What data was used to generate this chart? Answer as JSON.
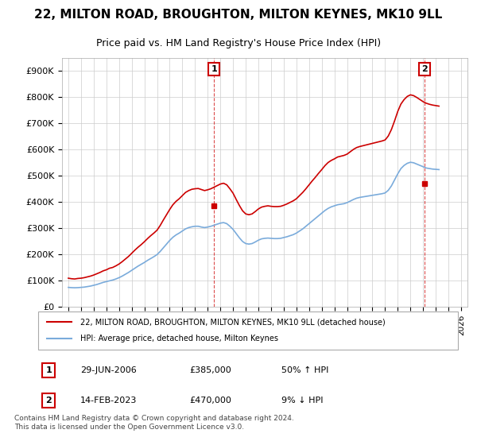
{
  "title": "22, MILTON ROAD, BROUGHTON, MILTON KEYNES, MK10 9LL",
  "subtitle": "Price paid vs. HM Land Registry's House Price Index (HPI)",
  "title_fontsize": 11,
  "subtitle_fontsize": 9,
  "ylabel_ticks": [
    "£0",
    "£100K",
    "£200K",
    "£300K",
    "£400K",
    "£500K",
    "£600K",
    "£700K",
    "£800K",
    "£900K"
  ],
  "ytick_values": [
    0,
    100000,
    200000,
    300000,
    400000,
    500000,
    600000,
    700000,
    800000,
    900000
  ],
  "ylim": [
    0,
    950000
  ],
  "xlim_start": 1994.5,
  "xlim_end": 2026.5,
  "xticks": [
    1995,
    1996,
    1997,
    1998,
    1999,
    2000,
    2001,
    2002,
    2003,
    2004,
    2005,
    2006,
    2007,
    2008,
    2009,
    2010,
    2011,
    2012,
    2013,
    2014,
    2015,
    2016,
    2017,
    2018,
    2019,
    2020,
    2021,
    2022,
    2023,
    2024,
    2025,
    2026
  ],
  "red_color": "#cc0000",
  "blue_color": "#7aabdb",
  "annotation_box_color": "#cc0000",
  "background_color": "#ffffff",
  "grid_color": "#cccccc",
  "legend_label_red": "22, MILTON ROAD, BROUGHTON, MILTON KEYNES, MK10 9LL (detached house)",
  "legend_label_blue": "HPI: Average price, detached house, Milton Keynes",
  "annotation1_label": "1",
  "annotation1_date": "29-JUN-2006",
  "annotation1_price": "£385,000",
  "annotation1_hpi": "50% ↑ HPI",
  "annotation2_label": "2",
  "annotation2_date": "14-FEB-2023",
  "annotation2_price": "£470,000",
  "annotation2_hpi": "9% ↓ HPI",
  "footer_text": "Contains HM Land Registry data © Crown copyright and database right 2024.\nThis data is licensed under the Open Government Licence v3.0.",
  "hpi_years": [
    1995,
    1995.25,
    1995.5,
    1995.75,
    1996,
    1996.25,
    1996.5,
    1996.75,
    1997,
    1997.25,
    1997.5,
    1997.75,
    1998,
    1998.25,
    1998.5,
    1998.75,
    1999,
    1999.25,
    1999.5,
    1999.75,
    2000,
    2000.25,
    2000.5,
    2000.75,
    2001,
    2001.25,
    2001.5,
    2001.75,
    2002,
    2002.25,
    2002.5,
    2002.75,
    2003,
    2003.25,
    2003.5,
    2003.75,
    2004,
    2004.25,
    2004.5,
    2004.75,
    2005,
    2005.25,
    2005.5,
    2005.75,
    2006,
    2006.25,
    2006.5,
    2006.75,
    2007,
    2007.25,
    2007.5,
    2007.75,
    2008,
    2008.25,
    2008.5,
    2008.75,
    2009,
    2009.25,
    2009.5,
    2009.75,
    2010,
    2010.25,
    2010.5,
    2010.75,
    2011,
    2011.25,
    2011.5,
    2011.75,
    2012,
    2012.25,
    2012.5,
    2012.75,
    2013,
    2013.25,
    2013.5,
    2013.75,
    2014,
    2014.25,
    2014.5,
    2014.75,
    2015,
    2015.25,
    2015.5,
    2015.75,
    2016,
    2016.25,
    2016.5,
    2016.75,
    2017,
    2017.25,
    2017.5,
    2017.75,
    2018,
    2018.25,
    2018.5,
    2018.75,
    2019,
    2019.25,
    2019.5,
    2019.75,
    2020,
    2020.25,
    2020.5,
    2020.75,
    2021,
    2021.25,
    2021.5,
    2021.75,
    2022,
    2022.25,
    2022.5,
    2022.75,
    2023,
    2023.25,
    2023.5,
    2023.75,
    2024,
    2024.25
  ],
  "hpi_values": [
    75000,
    74000,
    73500,
    74000,
    75000,
    76000,
    78000,
    80000,
    83000,
    86000,
    90000,
    94000,
    97000,
    100000,
    103000,
    107000,
    112000,
    118000,
    125000,
    132000,
    140000,
    148000,
    156000,
    163000,
    170000,
    178000,
    185000,
    192000,
    200000,
    212000,
    226000,
    240000,
    254000,
    266000,
    275000,
    282000,
    290000,
    298000,
    303000,
    306000,
    308000,
    308000,
    305000,
    303000,
    305000,
    308000,
    312000,
    316000,
    320000,
    322000,
    318000,
    308000,
    296000,
    280000,
    264000,
    250000,
    242000,
    240000,
    242000,
    248000,
    255000,
    260000,
    262000,
    263000,
    262000,
    261000,
    261000,
    262000,
    265000,
    268000,
    272000,
    276000,
    282000,
    290000,
    298000,
    308000,
    318000,
    328000,
    338000,
    348000,
    358000,
    368000,
    376000,
    382000,
    386000,
    390000,
    392000,
    394000,
    398000,
    404000,
    410000,
    415000,
    418000,
    420000,
    422000,
    424000,
    426000,
    428000,
    430000,
    432000,
    435000,
    445000,
    462000,
    485000,
    508000,
    528000,
    540000,
    548000,
    552000,
    550000,
    545000,
    540000,
    535000,
    530000,
    528000,
    526000,
    525000,
    524000
  ],
  "price_paid_years": [
    2006.497,
    2023.12
  ],
  "price_paid_values": [
    385000,
    470000
  ],
  "hpi_adjusted_years": [
    1995.0,
    1995.25,
    1995.5,
    1995.75,
    1996.0,
    1996.25,
    1996.5,
    1996.75,
    1997.0,
    1997.25,
    1997.5,
    1997.75,
    1998.0,
    1998.25,
    1998.5,
    1998.75,
    1999.0,
    1999.25,
    1999.5,
    1999.75,
    2000.0,
    2000.25,
    2000.5,
    2000.75,
    2001.0,
    2001.25,
    2001.5,
    2001.75,
    2002.0,
    2002.25,
    2002.5,
    2002.75,
    2003.0,
    2003.25,
    2003.5,
    2003.75,
    2004.0,
    2004.25,
    2004.5,
    2004.75,
    2005.0,
    2005.25,
    2005.5,
    2005.75,
    2006.0,
    2006.25,
    2006.5,
    2006.75,
    2007.0,
    2007.25,
    2007.5,
    2007.75,
    2008.0,
    2008.25,
    2008.5,
    2008.75,
    2009.0,
    2009.25,
    2009.5,
    2009.75,
    2010.0,
    2010.25,
    2010.5,
    2010.75,
    2011.0,
    2011.25,
    2011.5,
    2011.75,
    2012.0,
    2012.25,
    2012.5,
    2012.75,
    2013.0,
    2013.25,
    2013.5,
    2013.75,
    2014.0,
    2014.25,
    2014.5,
    2014.75,
    2015.0,
    2015.25,
    2015.5,
    2015.75,
    2016.0,
    2016.25,
    2016.5,
    2016.75,
    2017.0,
    2017.25,
    2017.5,
    2017.75,
    2018.0,
    2018.25,
    2018.5,
    2018.75,
    2019.0,
    2019.25,
    2019.5,
    2019.75,
    2020.0,
    2020.25,
    2020.5,
    2020.75,
    2021.0,
    2021.25,
    2021.5,
    2021.75,
    2022.0,
    2022.25,
    2022.5,
    2022.75,
    2023.0,
    2023.25,
    2023.5,
    2023.75,
    2024.0,
    2024.25
  ],
  "hpi_adjusted_values": [
    110000,
    108000,
    107000,
    109000,
    110000,
    112000,
    115000,
    118000,
    122000,
    127000,
    132000,
    138000,
    142000,
    148000,
    151000,
    157000,
    164000,
    173000,
    183000,
    193000,
    205000,
    217000,
    228000,
    238000,
    249000,
    261000,
    272000,
    282000,
    293000,
    311000,
    332000,
    352000,
    372000,
    390000,
    403000,
    413000,
    425000,
    437000,
    444000,
    449000,
    451000,
    452000,
    448000,
    444000,
    447000,
    451000,
    457000,
    463000,
    469000,
    472000,
    466000,
    451000,
    434000,
    410000,
    387000,
    367000,
    355000,
    352000,
    355000,
    364000,
    374000,
    381000,
    384000,
    386000,
    384000,
    383000,
    383000,
    384000,
    388000,
    393000,
    399000,
    405000,
    413000,
    425000,
    437000,
    451000,
    466000,
    481000,
    495000,
    510000,
    524000,
    539000,
    551000,
    559000,
    565000,
    572000,
    575000,
    578000,
    583000,
    592000,
    601000,
    608000,
    612000,
    615000,
    618000,
    621000,
    624000,
    627000,
    630000,
    633000,
    637000,
    652000,
    677000,
    710000,
    746000,
    774000,
    791000,
    803000,
    809000,
    806000,
    799000,
    791000,
    783000,
    777000,
    773000,
    770000,
    768000,
    766000
  ]
}
